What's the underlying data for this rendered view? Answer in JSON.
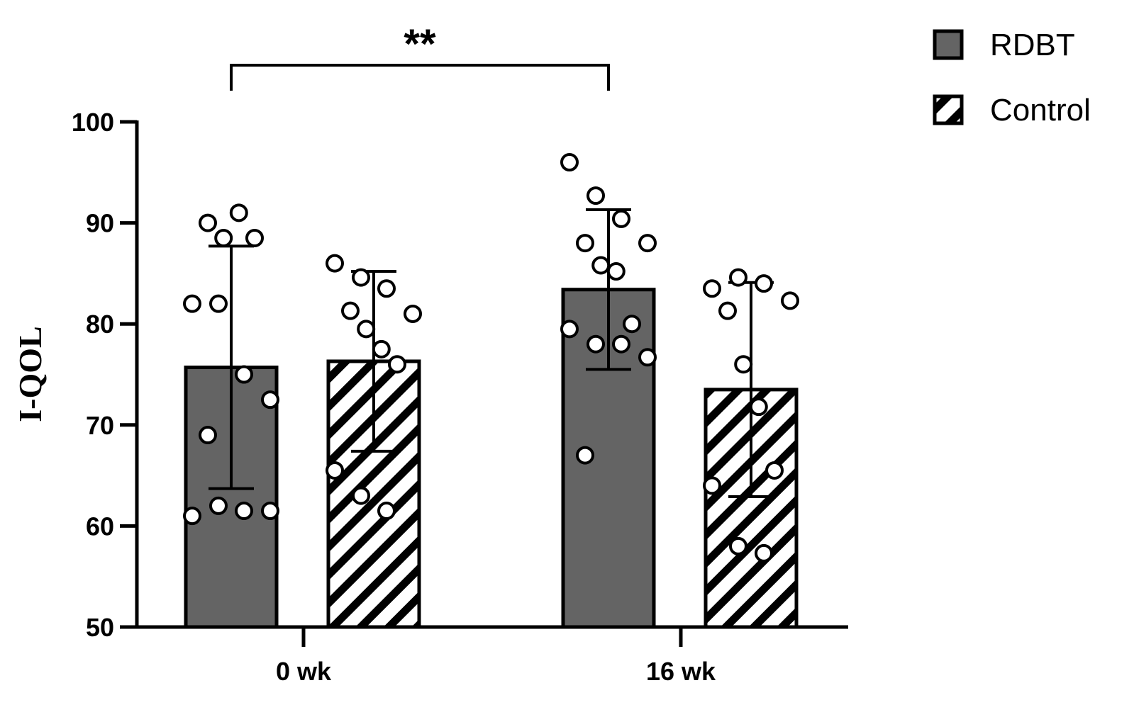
{
  "chart_data": {
    "type": "bar",
    "ylabel": "I-QOL",
    "xlabel": "",
    "ylim": [
      50,
      100
    ],
    "yticks": [
      50,
      60,
      70,
      80,
      90,
      100
    ],
    "categories": [
      "0 wk",
      "16 wk"
    ],
    "legend_position": "top-right",
    "grid": false,
    "series": [
      {
        "name": "RDBT",
        "pattern": "solid",
        "color": "#646464",
        "values": [
          75.7,
          83.4
        ],
        "sd": [
          12.0,
          7.9
        ],
        "points": [
          [
            61,
            62,
            61.5,
            61.5,
            90,
            88.5,
            91,
            88.5,
            82,
            82,
            75,
            72.5,
            69
          ],
          [
            96,
            92.7,
            90.4,
            88,
            88,
            85.8,
            85.2,
            80,
            79.5,
            78,
            78,
            76.7,
            67
          ]
        ]
      },
      {
        "name": "Control",
        "pattern": "hatched",
        "color": "#000000",
        "values": [
          76.3,
          73.5
        ],
        "sd": [
          8.9,
          10.6
        ],
        "points": [
          [
            86,
            84.6,
            83.5,
            81,
            81.3,
            79.5,
            77.5,
            76,
            65.5,
            63,
            61.5
          ],
          [
            83.5,
            84.6,
            84,
            82.3,
            81.3,
            76,
            71.8,
            65.5,
            64,
            58,
            57.3
          ]
        ]
      }
    ],
    "significance": [
      {
        "label": "**",
        "from": 0,
        "to": 2
      }
    ]
  }
}
